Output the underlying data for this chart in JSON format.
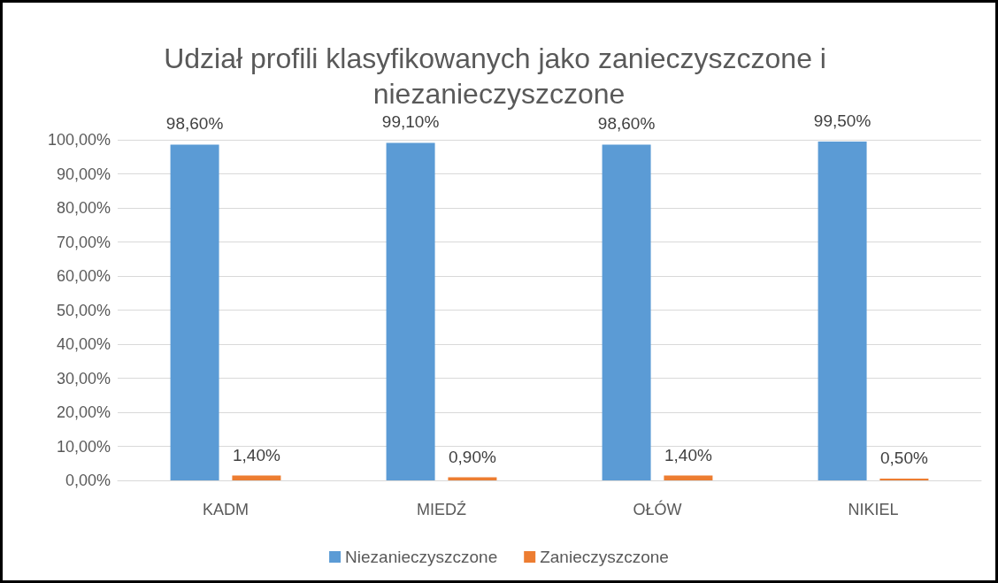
{
  "chart_data": {
    "type": "bar",
    "title": "Udział profili klasyfikowanych jako zanieczyszczone i niezanieczyszczone",
    "categories": [
      "KADM",
      "MIEDŹ",
      "OŁÓW",
      "NIKIEL"
    ],
    "series": [
      {
        "name": "Niezanieczyszczone",
        "color": "#5b9bd5",
        "values": [
          98.6,
          99.1,
          98.6,
          99.5
        ],
        "value_labels": [
          "98,60%",
          "99,10%",
          "98,60%",
          "99,50%"
        ]
      },
      {
        "name": "Zanieczyszczone",
        "color": "#ed7d31",
        "values": [
          1.4,
          0.9,
          1.4,
          0.5
        ],
        "value_labels": [
          "1,40%",
          "0,90%",
          "1,40%",
          "0,50%"
        ]
      }
    ],
    "ylim": [
      0,
      100
    ],
    "yticks": [
      {
        "value": 0,
        "label": "0,00%"
      },
      {
        "value": 10,
        "label": "10,00%"
      },
      {
        "value": 20,
        "label": "20,00%"
      },
      {
        "value": 30,
        "label": "30,00%"
      },
      {
        "value": 40,
        "label": "40,00%"
      },
      {
        "value": 50,
        "label": "50,00%"
      },
      {
        "value": 60,
        "label": "60,00%"
      },
      {
        "value": 70,
        "label": "70,00%"
      },
      {
        "value": 80,
        "label": "80,00%"
      },
      {
        "value": 90,
        "label": "90,00%"
      },
      {
        "value": 100,
        "label": "100,00%"
      }
    ],
    "grid": "y",
    "legend": "bottom"
  }
}
